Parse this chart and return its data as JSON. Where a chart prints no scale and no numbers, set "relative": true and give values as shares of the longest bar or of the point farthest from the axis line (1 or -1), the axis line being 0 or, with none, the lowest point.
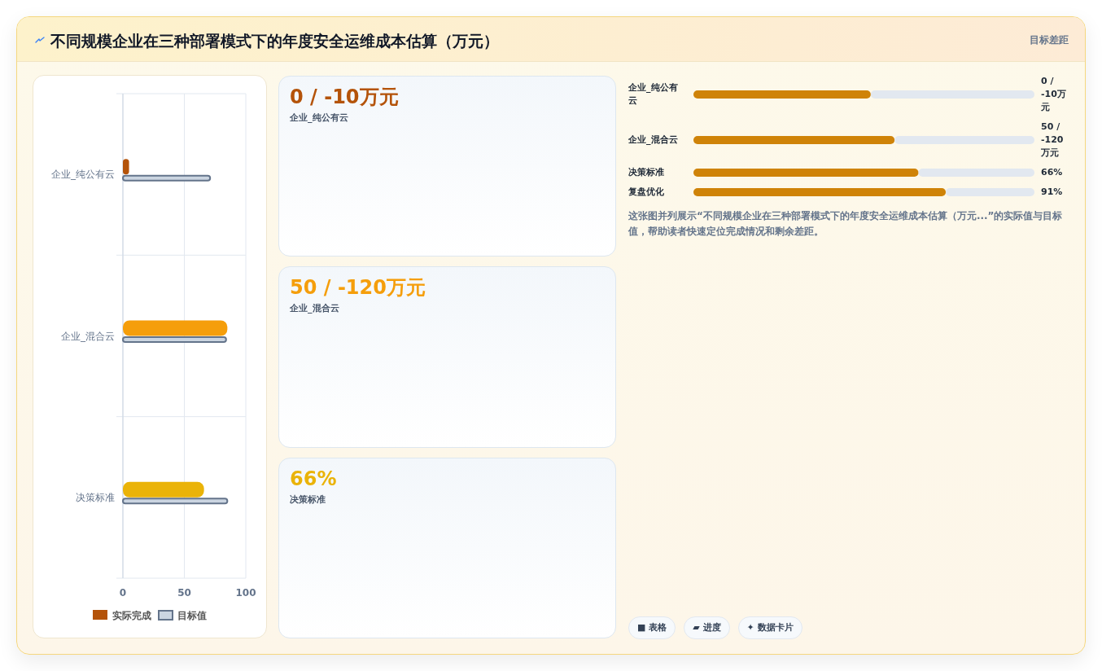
{
  "chart_data": [
    {
      "type": "bar",
      "title": "不同规模企业在三种部署模式下的年度安全运维成本估算（万元）",
      "orientation": "horizontal",
      "categories": [
        "企业_纯公有云",
        "企业_混合云",
        "决策标准"
      ],
      "series": [
        {
          "name": "实际完成",
          "color": "#b45309",
          "colors": [
            "#b45309",
            "#f59e0b",
            "#eab308"
          ],
          "values": [
            5,
            85,
            66
          ]
        },
        {
          "name": "目标值",
          "color": "#cbd5e1",
          "values": [
            71,
            84,
            85
          ]
        }
      ],
      "xlim": [
        0,
        100
      ],
      "xticks": [
        0,
        50,
        100
      ],
      "grid": true,
      "legend": "bottom"
    },
    {
      "type": "other",
      "annotations": [
        "0 / -10万元",
        "企业_纯公有云",
        "50 / -120万元",
        "企业_混合云",
        "66%",
        "决策标准"
      ],
      "colors": [
        "#b45309",
        "#f59e0b",
        "#eab308"
      ]
    },
    {
      "type": "bar",
      "title": "目标差距",
      "orientation": "horizontal",
      "stacked": true,
      "relative": true,
      "categories": [
        "企业_纯公有云",
        "企业_混合云",
        "决策标准",
        "复盘优化"
      ],
      "series": [
        {
          "color": "#cf8308",
          "values": [
            0.52,
            0.59,
            0.66,
            0.74
          ]
        },
        {
          "color": "#e2e8f0",
          "values": [
            0.48,
            0.41,
            0.34,
            0.26
          ]
        }
      ],
      "annotations": [
        "0 / -10万元",
        "50 / -120万元",
        "66%",
        "91%",
        "这张图并列展示“不同规模企业在三种部署模式下的年度安全运维成本估算（万元...”的实际值与目标值，帮助读者快速定位完成情况和剩余差距。",
        "■ 表格",
        "▰ 进度",
        "✦ 数据卡片"
      ]
    }
  ]
}
